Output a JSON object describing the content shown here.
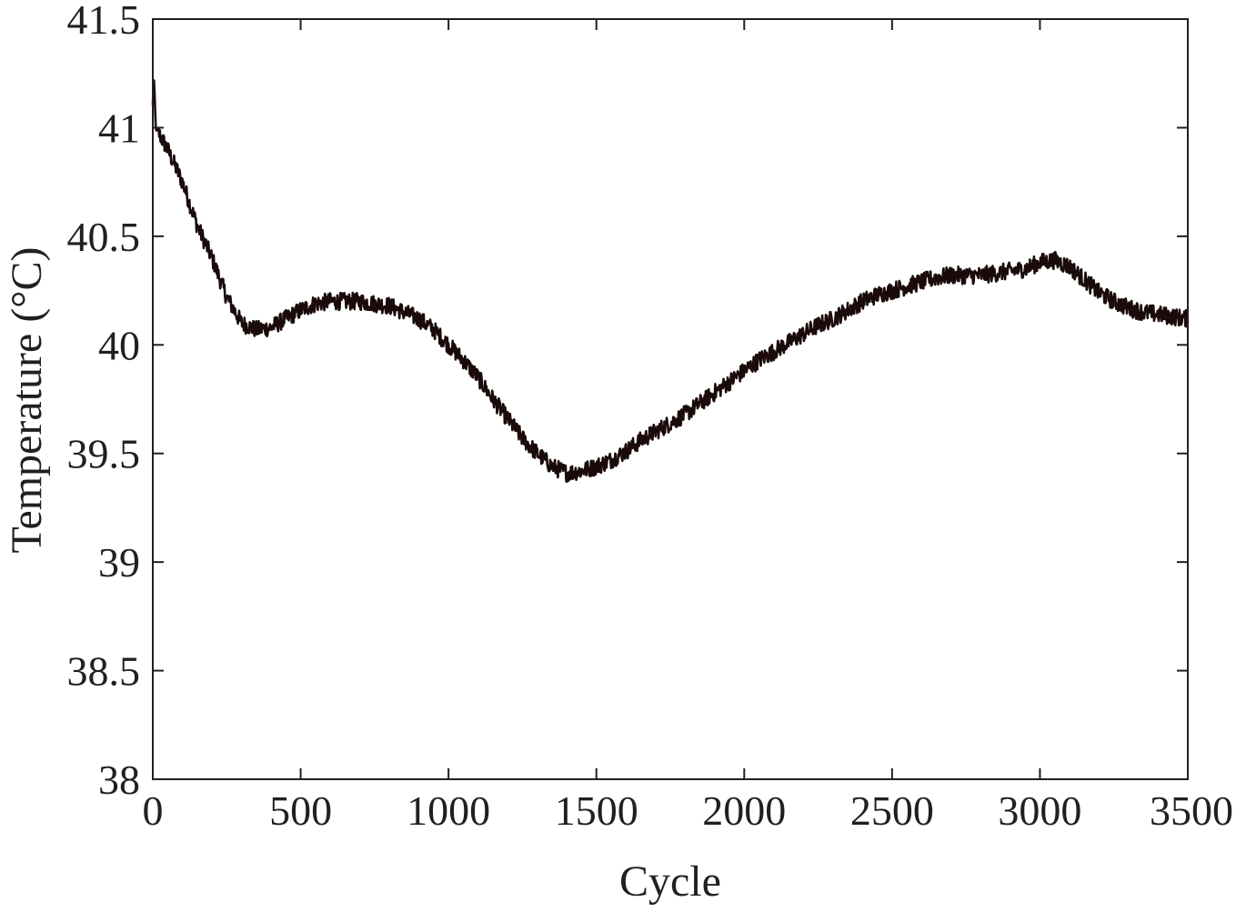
{
  "chart_data": {
    "type": "line",
    "title": "",
    "xlabel": "Cycle",
    "ylabel": "Temperature (°C)",
    "xlim": [
      0,
      3500
    ],
    "ylim": [
      38,
      41.5
    ],
    "xticks": [
      0,
      500,
      1000,
      1500,
      2000,
      2500,
      3000,
      3500
    ],
    "yticks": [
      38,
      38.5,
      39,
      39.5,
      40,
      40.5,
      41,
      41.5
    ],
    "xtick_labels": [
      "0",
      "500",
      "1000",
      "1500",
      "2000",
      "2500",
      "3000",
      "3500"
    ],
    "ytick_labels": [
      "38",
      "38.5",
      "39",
      "39.5",
      "40",
      "40.5",
      "41",
      "41.5"
    ],
    "grid": false,
    "legend": "none",
    "line_color": "#1a0a0a",
    "noise_amplitude": 0.04,
    "series": [
      {
        "x": [
          0,
          3,
          10,
          50,
          100,
          150,
          200,
          250,
          300,
          350,
          400,
          450,
          500,
          550,
          600,
          650,
          700,
          750,
          800,
          850,
          900,
          950,
          1000,
          1050,
          1100,
          1150,
          1200,
          1250,
          1300,
          1350,
          1400,
          1450,
          1500,
          1550,
          1600,
          1650,
          1700,
          1750,
          1800,
          1850,
          1900,
          1950,
          2000,
          2050,
          2100,
          2150,
          2200,
          2250,
          2300,
          2350,
          2400,
          2450,
          2500,
          2550,
          2600,
          2650,
          2700,
          2750,
          2800,
          2850,
          2900,
          2950,
          3000,
          3050,
          3100,
          3150,
          3200,
          3250,
          3300,
          3350,
          3400,
          3450,
          3500
        ],
        "values": [
          41.1,
          41.25,
          41.0,
          40.9,
          40.75,
          40.55,
          40.4,
          40.22,
          40.1,
          40.07,
          40.08,
          40.12,
          40.16,
          40.19,
          40.2,
          40.2,
          40.2,
          40.19,
          40.18,
          40.15,
          40.12,
          40.07,
          40.0,
          39.93,
          39.85,
          39.75,
          39.66,
          39.57,
          39.5,
          39.44,
          39.41,
          39.42,
          39.44,
          39.47,
          39.51,
          39.56,
          39.6,
          39.64,
          39.68,
          39.73,
          39.78,
          39.83,
          39.88,
          39.93,
          39.97,
          40.01,
          40.05,
          40.09,
          40.12,
          40.16,
          40.2,
          40.23,
          40.25,
          40.27,
          40.29,
          40.31,
          40.32,
          40.32,
          40.32,
          40.33,
          40.34,
          40.35,
          40.38,
          40.39,
          40.36,
          40.3,
          40.24,
          40.2,
          40.17,
          40.15,
          40.14,
          40.13,
          40.12
        ]
      }
    ]
  }
}
